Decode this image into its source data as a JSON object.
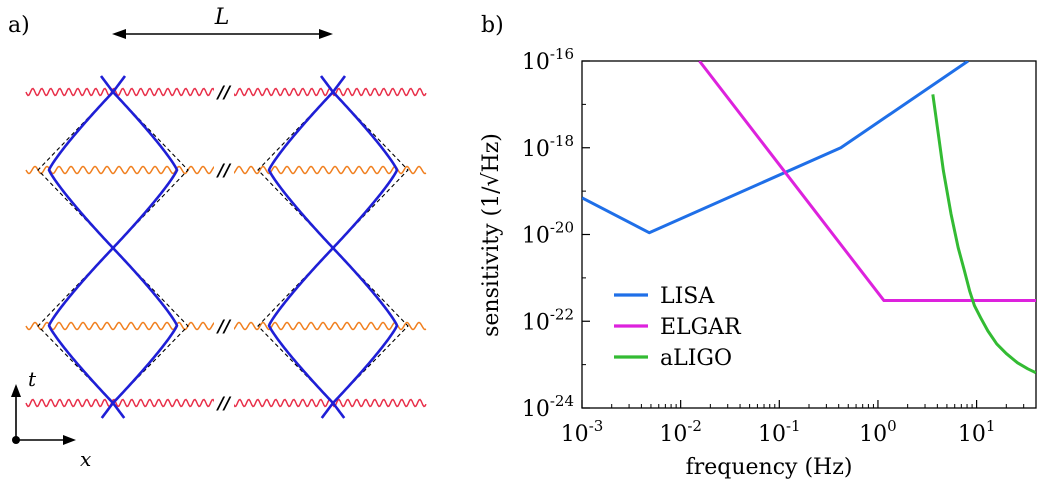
{
  "panel_a": {
    "label": "a)",
    "length_label": "L",
    "t_axis_label": "t",
    "x_axis_label": "x",
    "break_mark": "//",
    "colors": {
      "pulse_red": "#e8304a",
      "pulse_orange": "#f07f1f",
      "trajectory": "#1f1fd6",
      "dashed": "#000000"
    }
  },
  "panel_b": {
    "label": "b)",
    "colors": {
      "LISA": "#1f6fe8",
      "ELGAR": "#dd22dd",
      "aLIGO": "#33bb33"
    }
  },
  "chart_data": {
    "type": "line",
    "xlabel": "frequency (Hz)",
    "ylabel": "sensitivity (1/√Hz)",
    "xscale": "log",
    "yscale": "log",
    "xlim": [
      0.001,
      40
    ],
    "ylim": [
      1e-24,
      1e-16
    ],
    "xticks": [
      {
        "value": 0.001,
        "base": "10",
        "exp": "-3"
      },
      {
        "value": 0.01,
        "base": "10",
        "exp": "-2"
      },
      {
        "value": 0.1,
        "base": "10",
        "exp": "-1"
      },
      {
        "value": 1,
        "base": "10",
        "exp": "0"
      },
      {
        "value": 10,
        "base": "10",
        "exp": "1"
      }
    ],
    "yticks": [
      {
        "value": 1e-16,
        "base": "10",
        "exp": "-16"
      },
      {
        "value": 1e-18,
        "base": "10",
        "exp": "-18"
      },
      {
        "value": 1e-20,
        "base": "10",
        "exp": "-20"
      },
      {
        "value": 1e-22,
        "base": "10",
        "exp": "-22"
      },
      {
        "value": 1e-24,
        "base": "10",
        "exp": "-24"
      }
    ],
    "legend_position": "lower-left",
    "series": [
      {
        "name": "LISA",
        "color": "#1f6fe8",
        "x": [
          0.001,
          0.0048,
          0.42,
          8.2
        ],
        "y": [
          7e-20,
          1.1e-20,
          1e-18,
          1e-16
        ]
      },
      {
        "name": "ELGAR",
        "color": "#dd22dd",
        "x": [
          0.0155,
          1.15,
          40
        ],
        "y": [
          1e-16,
          3e-22,
          3e-22
        ]
      },
      {
        "name": "aLIGO",
        "color": "#33bb33",
        "x": [
          3.6,
          4.0,
          4.6,
          5.5,
          6.5,
          7.5,
          8.5,
          9.5,
          11,
          13,
          16,
          20,
          26,
          33,
          40
        ],
        "y": [
          1.7e-17,
          3e-18,
          3e-19,
          3e-20,
          5e-21,
          1.5e-21,
          5e-22,
          2.3e-22,
          1.2e-22,
          6e-23,
          3e-23,
          1.8e-23,
          1.1e-23,
          8e-24,
          6.5e-24
        ]
      }
    ]
  }
}
